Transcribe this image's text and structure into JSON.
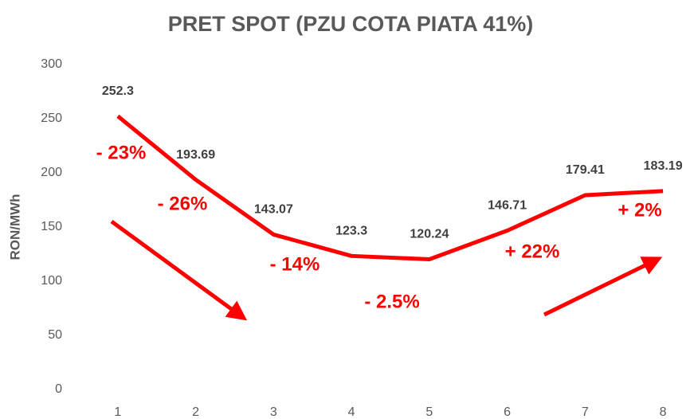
{
  "chart_data": {
    "type": "line",
    "title": "PRET SPOT (PZU COTA PIATA 41%)",
    "y_label": "RON/MWh",
    "categories": [
      "1",
      "2",
      "3",
      "4",
      "5",
      "6",
      "7",
      "8"
    ],
    "series": [
      {
        "name": "Pret spot",
        "color": "#ff0000",
        "values": [
          252.3,
          193.69,
          143.07,
          123.3,
          120.24,
          146.71,
          179.41,
          183.19
        ]
      }
    ],
    "ylim": [
      0,
      300
    ],
    "yticks": [
      0,
      50,
      100,
      150,
      200,
      250,
      300
    ],
    "grid": false,
    "annotations": [
      "- 23%",
      "- 26%",
      "- 14%",
      "- 2.5%",
      "+ 22%",
      "+ 2%"
    ]
  }
}
